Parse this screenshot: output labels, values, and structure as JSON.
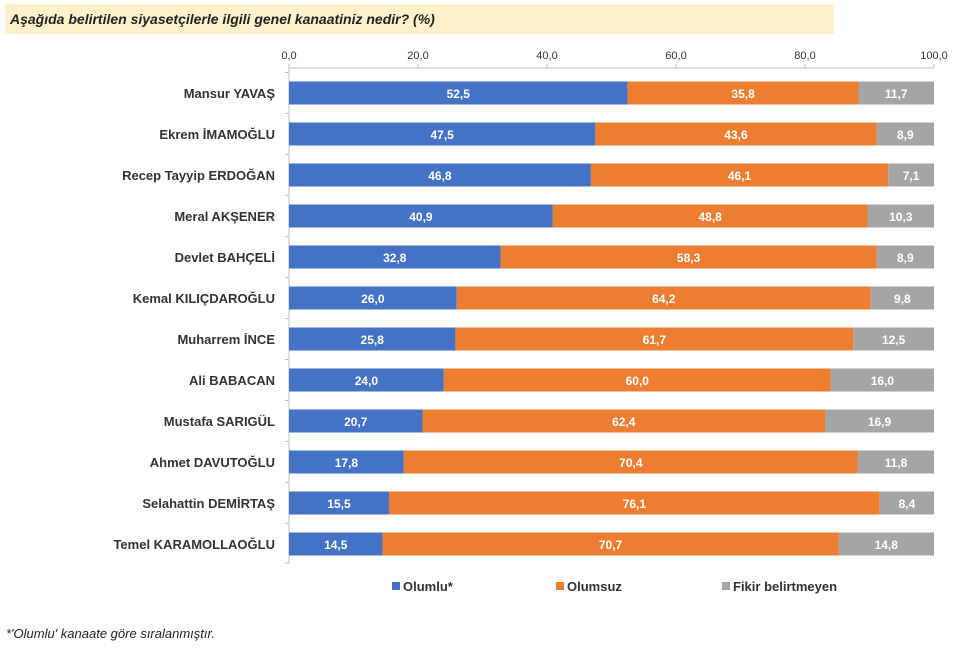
{
  "title": "Aşağıda belirtilen siyasetçilerle ilgili genel kanaatiniz nedir? (%)",
  "footnote": "*'Olumlu' kanaate göre sıralanmıştır.",
  "chart_data": {
    "type": "bar",
    "orientation": "horizontal",
    "stacked": true,
    "title": "Aşağıda belirtilen siyasetçilerle ilgili genel kanaatiniz nedir? (%)",
    "xlim": [
      0,
      100
    ],
    "ticks": [
      "0,0",
      "20,0",
      "40,0",
      "60,0",
      "80,0",
      "100,0"
    ],
    "tick_values": [
      0,
      20,
      40,
      60,
      80,
      100
    ],
    "legend_position": "bottom",
    "grid": false,
    "categories": [
      "Mansur YAVAŞ",
      "Ekrem İMAMOĞLU",
      "Recep Tayyip ERDOĞAN",
      "Meral AKŞENER",
      "Devlet BAHÇELİ",
      "Kemal KILIÇDAROĞLU",
      "Muharrem İNCE",
      "Ali BABACAN",
      "Mustafa SARIGÜL",
      "Ahmet DAVUTOĞLU",
      "Selahattin DEMİRTAŞ",
      "Temel KARAMOLLAOĞLU"
    ],
    "series": [
      {
        "name": "Olumlu*",
        "color": "#4472c4",
        "values": [
          52.5,
          47.5,
          46.8,
          40.9,
          32.8,
          26.0,
          25.8,
          24.0,
          20.7,
          17.8,
          15.5,
          14.5
        ],
        "labels": [
          "52,5",
          "47,5",
          "46,8",
          "40,9",
          "32,8",
          "26,0",
          "25,8",
          "24,0",
          "20,7",
          "17,8",
          "15,5",
          "14,5"
        ]
      },
      {
        "name": "Olumsuz",
        "color": "#ed7d31",
        "values": [
          35.8,
          43.6,
          46.1,
          48.8,
          58.3,
          64.2,
          61.7,
          60.0,
          62.4,
          70.4,
          76.1,
          70.7
        ],
        "labels": [
          "35,8",
          "43,6",
          "46,1",
          "48,8",
          "58,3",
          "64,2",
          "61,7",
          "60,0",
          "62,4",
          "70,4",
          "76,1",
          "70,7"
        ]
      },
      {
        "name": "Fikir belirtmeyen",
        "color": "#a5a5a5",
        "values": [
          11.7,
          8.9,
          7.1,
          10.3,
          8.9,
          9.8,
          12.5,
          16.0,
          16.9,
          11.8,
          8.4,
          14.8
        ],
        "labels": [
          "11,7",
          "8,9",
          "7,1",
          "10,3",
          "8,9",
          "9,8",
          "12,5",
          "16,0",
          "16,9",
          "11,8",
          "8,4",
          "14,8"
        ]
      }
    ]
  }
}
